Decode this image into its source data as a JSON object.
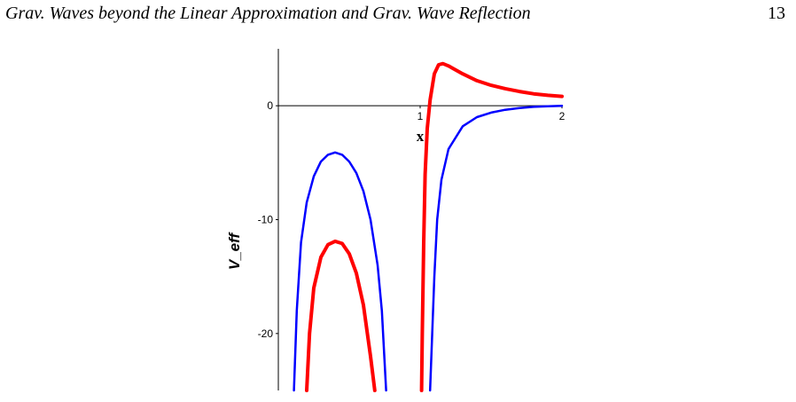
{
  "header": {
    "title": "Grav. Waves beyond the Linear Approximation and Grav. Wave Reflection",
    "page_number": "13"
  },
  "chart_data": {
    "type": "line",
    "xlabel": "x",
    "ylabel": "V_eff",
    "xlim": [
      0,
      2
    ],
    "ylim": [
      -25,
      5
    ],
    "x_ticks": [
      "1",
      "2"
    ],
    "y_ticks": [
      "0",
      "-10",
      "-20"
    ],
    "y_tick_values": [
      0,
      -10,
      -20
    ],
    "x_tick_values": [
      1,
      2
    ],
    "grid": false,
    "series": [
      {
        "color": "#0000ff",
        "segments": [
          [
            [
              0.11,
              -25
            ],
            [
              0.13,
              -18
            ],
            [
              0.16,
              -12
            ],
            [
              0.2,
              -8.5
            ],
            [
              0.25,
              -6.2
            ],
            [
              0.3,
              -4.9
            ],
            [
              0.35,
              -4.3
            ],
            [
              0.4,
              -4.1
            ],
            [
              0.45,
              -4.3
            ],
            [
              0.5,
              -4.9
            ],
            [
              0.55,
              -5.9
            ],
            [
              0.6,
              -7.5
            ],
            [
              0.65,
              -10
            ],
            [
              0.7,
              -14
            ],
            [
              0.73,
              -18
            ],
            [
              0.76,
              -25
            ]
          ],
          [
            [
              1.07,
              -25
            ],
            [
              1.085,
              -20
            ],
            [
              1.1,
              -15
            ],
            [
              1.12,
              -10
            ],
            [
              1.15,
              -6.5
            ],
            [
              1.2,
              -3.8
            ],
            [
              1.3,
              -1.8
            ],
            [
              1.4,
              -1.0
            ],
            [
              1.5,
              -0.6
            ],
            [
              1.6,
              -0.35
            ],
            [
              1.7,
              -0.2
            ],
            [
              1.8,
              -0.1
            ],
            [
              1.9,
              -0.04
            ],
            [
              2.0,
              0
            ]
          ]
        ]
      },
      {
        "color": "#ff0000",
        "segments": [
          [
            [
              0.2,
              -25
            ],
            [
              0.22,
              -20
            ],
            [
              0.25,
              -16
            ],
            [
              0.3,
              -13.3
            ],
            [
              0.35,
              -12.2
            ],
            [
              0.4,
              -11.9
            ],
            [
              0.45,
              -12.1
            ],
            [
              0.5,
              -13
            ],
            [
              0.55,
              -14.7
            ],
            [
              0.6,
              -17.5
            ],
            [
              0.65,
              -22
            ],
            [
              0.68,
              -25
            ]
          ],
          [
            [
              1.01,
              -25
            ],
            [
              1.015,
              -20
            ],
            [
              1.025,
              -12
            ],
            [
              1.035,
              -6
            ],
            [
              1.05,
              -2
            ],
            [
              1.07,
              0.5
            ],
            [
              1.1,
              2.8
            ],
            [
              1.13,
              3.6
            ],
            [
              1.16,
              3.7
            ],
            [
              1.2,
              3.5
            ],
            [
              1.3,
              2.8
            ],
            [
              1.4,
              2.2
            ],
            [
              1.5,
              1.8
            ],
            [
              1.6,
              1.5
            ],
            [
              1.7,
              1.25
            ],
            [
              1.8,
              1.05
            ],
            [
              1.9,
              0.92
            ],
            [
              2.0,
              0.82
            ]
          ]
        ]
      }
    ]
  }
}
